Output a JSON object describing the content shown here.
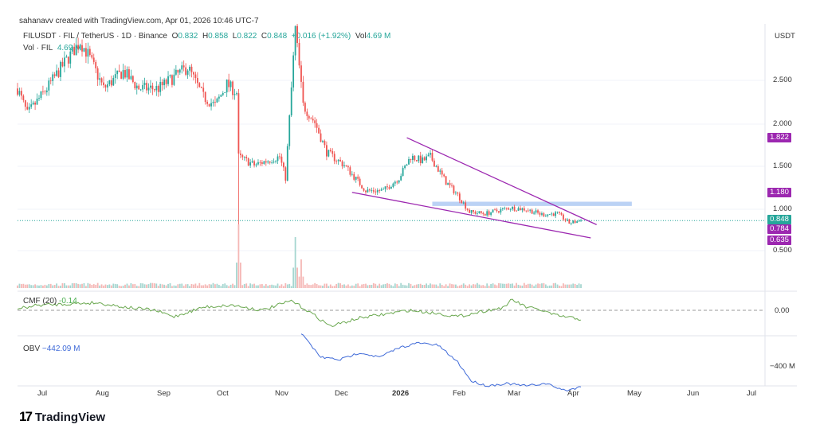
{
  "header": {
    "credit": "sahanavv created with TradingView.com, Apr 01, 2026 10:46 UTC-7",
    "symbol": "FILUSDT · FIL / TetherUS · 1D · Binance",
    "o_label": "O",
    "o": "0.832",
    "h_label": "H",
    "h": "0.858",
    "l_label": "L",
    "l": "0.822",
    "c_label": "C",
    "c": "0.848",
    "change": "+0.016 (+1.92%)",
    "vol_label": "Vol",
    "vol": "4.69 M",
    "vol_legend": "Vol · FIL",
    "vol_legend_value": "4.69 M"
  },
  "currency": "USDT",
  "price_ticks": [
    "2.500",
    "2.000",
    "1.500",
    "1.000",
    "0.500"
  ],
  "price_tags": [
    {
      "label": "1.822",
      "color": "#9c27b0"
    },
    {
      "label": "1.180",
      "color": "#9c27b0"
    },
    {
      "label": "0.848",
      "color": "#26a69a"
    },
    {
      "label": "0.784",
      "color": "#9c27b0"
    },
    {
      "label": "0.635",
      "color": "#9c27b0"
    }
  ],
  "cmf": {
    "label": "CMF (20)",
    "value": "-0.14",
    "tick": "0.00"
  },
  "obv": {
    "label": "OBV",
    "value": "−442.09 M",
    "tick": "−400 M"
  },
  "time_ticks": [
    "Jul",
    "Aug",
    "Sep",
    "Oct",
    "Nov",
    "Dec",
    "2026",
    "Feb",
    "Mar",
    "Apr",
    "May",
    "Jun",
    "Jul"
  ],
  "logo": "TradingView",
  "chart_data": {
    "type": "candlestick",
    "title": "FILUSDT 1D",
    "start": "2025-06-17",
    "end": "2026-04-01",
    "close_keypoints": [
      [
        0,
        2.4
      ],
      [
        5,
        2.1
      ],
      [
        15,
        2.4
      ],
      [
        24,
        2.7
      ],
      [
        32,
        2.95
      ],
      [
        36,
        2.8
      ],
      [
        44,
        2.4
      ],
      [
        54,
        2.6
      ],
      [
        62,
        2.4
      ],
      [
        72,
        2.4
      ],
      [
        87,
        2.65
      ],
      [
        95,
        2.3
      ],
      [
        101,
        2.2
      ],
      [
        107,
        2.45
      ],
      [
        112,
        2.35
      ],
      [
        113,
        1.6
      ],
      [
        121,
        1.5
      ],
      [
        134,
        1.6
      ],
      [
        137,
        1.35
      ],
      [
        142,
        3.1
      ],
      [
        146,
        2.2
      ],
      [
        152,
        2.0
      ],
      [
        158,
        1.65
      ],
      [
        167,
        1.5
      ],
      [
        178,
        1.2
      ],
      [
        187,
        1.2
      ],
      [
        195,
        1.35
      ],
      [
        201,
        1.6
      ],
      [
        207,
        1.55
      ],
      [
        211,
        1.6
      ],
      [
        219,
        1.3
      ],
      [
        225,
        1.15
      ],
      [
        231,
        0.95
      ],
      [
        239,
        0.93
      ],
      [
        252,
        1.0
      ],
      [
        260,
        0.98
      ],
      [
        268,
        0.92
      ],
      [
        276,
        0.93
      ],
      [
        282,
        0.82
      ],
      [
        288,
        0.848
      ]
    ],
    "volume_spikes": [
      [
        113,
        1.0
      ],
      [
        142,
        0.8
      ],
      [
        145,
        0.45
      ]
    ],
    "cmf_keypoints": [
      [
        0,
        0.02
      ],
      [
        10,
        0.08
      ],
      [
        25,
        0.1
      ],
      [
        40,
        0.12
      ],
      [
        55,
        0.05
      ],
      [
        70,
        0.0
      ],
      [
        80,
        -0.1
      ],
      [
        95,
        0.05
      ],
      [
        110,
        0.08
      ],
      [
        125,
        0.0
      ],
      [
        140,
        0.15
      ],
      [
        148,
        0.0
      ],
      [
        160,
        -0.25
      ],
      [
        175,
        -0.12
      ],
      [
        190,
        -0.05
      ],
      [
        200,
        0.0
      ],
      [
        215,
        -0.05
      ],
      [
        225,
        -0.1
      ],
      [
        240,
        0.0
      ],
      [
        250,
        0.05
      ],
      [
        252,
        0.18
      ],
      [
        260,
        0.05
      ],
      [
        268,
        0.0
      ],
      [
        275,
        -0.08
      ],
      [
        288,
        -0.14
      ]
    ],
    "obv_keypoints": [
      [
        145,
        -330
      ],
      [
        150,
        -355
      ],
      [
        155,
        -380
      ],
      [
        165,
        -385
      ],
      [
        175,
        -370
      ],
      [
        185,
        -380
      ],
      [
        195,
        -360
      ],
      [
        205,
        -350
      ],
      [
        215,
        -355
      ],
      [
        225,
        -390
      ],
      [
        232,
        -430
      ],
      [
        240,
        -440
      ],
      [
        250,
        -435
      ],
      [
        260,
        -440
      ],
      [
        270,
        -435
      ],
      [
        280,
        -450
      ],
      [
        288,
        -442
      ]
    ],
    "trendlines": [
      {
        "from": [
          199,
          1.822
        ],
        "to": [
          296,
          0.8
        ]
      },
      {
        "from": [
          171,
          1.18
        ],
        "to": [
          293,
          0.645
        ]
      }
    ],
    "resistance_zone": {
      "from_day": 212,
      "to_day": 314,
      "low": 1.02,
      "high": 1.07
    },
    "ylim": [
      0.4,
      3.1
    ]
  }
}
